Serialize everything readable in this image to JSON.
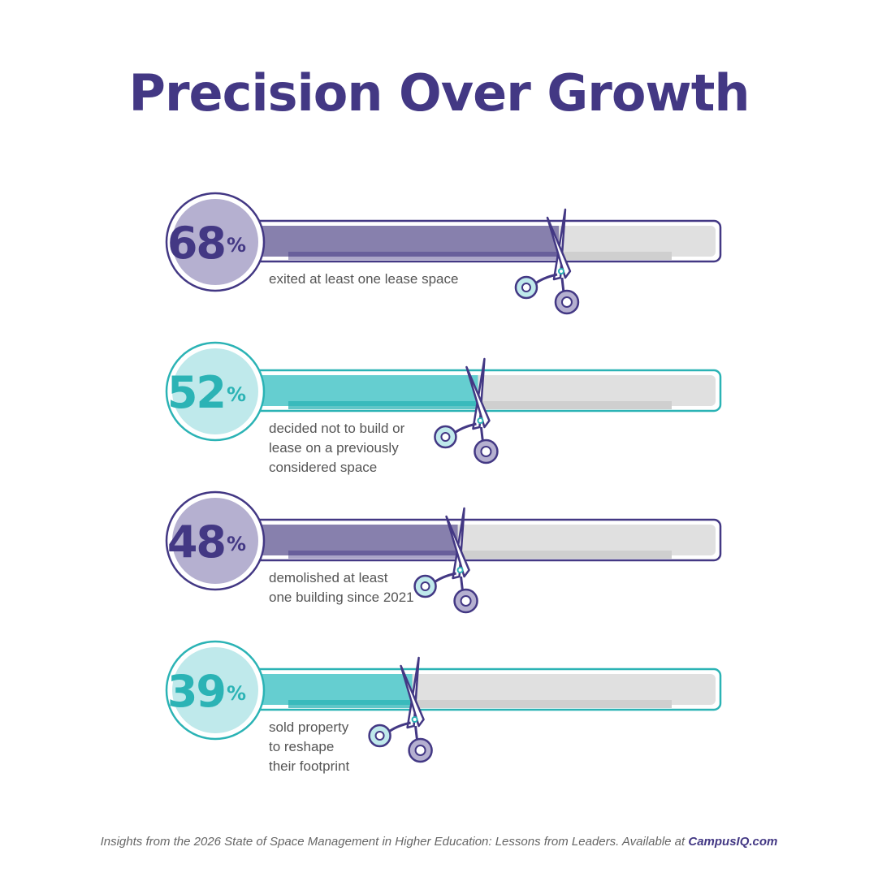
{
  "header": {
    "title": "Precision Over Growth"
  },
  "colors": {
    "purple_dark": "#433884",
    "purple_mid": "#8780ad",
    "purple_light": "#b5b0d0",
    "purple_inner": "#6b639e",
    "teal_dark": "#2bb3b5",
    "teal_mid": "#65ced0",
    "teal_light": "#bfe9eb",
    "track": "#e0e0e0",
    "track_inner": "#cfcfcf"
  },
  "chart_data": {
    "type": "bar",
    "orientation": "horizontal",
    "unit": "%",
    "xlim": [
      0,
      100
    ],
    "bars": [
      {
        "value": 68,
        "theme": "purple",
        "label_lines": [
          "exited at least one lease space"
        ]
      },
      {
        "value": 52,
        "theme": "teal",
        "label_lines": [
          "decided not to build or",
          "lease on a previously",
          "considered space"
        ]
      },
      {
        "value": 48,
        "theme": "purple",
        "label_lines": [
          "demolished at least",
          "one building since 2021"
        ]
      },
      {
        "value": 39,
        "theme": "teal",
        "label_lines": [
          "sold property",
          "to reshape",
          "their footprint"
        ]
      }
    ]
  },
  "footer": {
    "text": "Insights from the 2026 State of Space Management in Higher Education: Lessons from Leaders. Available at ",
    "link": "CampusIQ.com"
  }
}
